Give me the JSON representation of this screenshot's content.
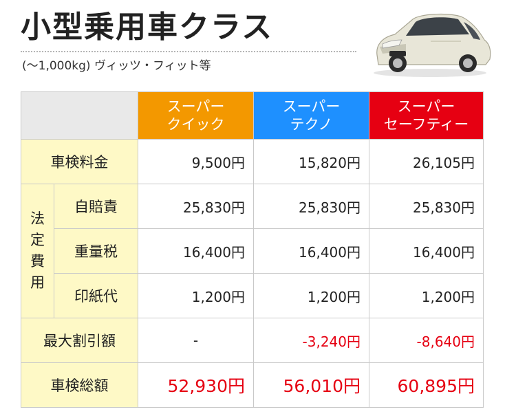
{
  "header": {
    "title": "小型乗用車クラス",
    "subtitle": "(～1,000kg) ヴィッツ・フィット等"
  },
  "plans": [
    {
      "line1": "スーパー",
      "line2": "クイック",
      "color": "#f39800"
    },
    {
      "line1": "スーパー",
      "line2": "テクノ",
      "color": "#1e90ff"
    },
    {
      "line1": "スーパー",
      "line2": "セーフティー",
      "color": "#e60012"
    }
  ],
  "rows": {
    "inspection_fee": {
      "label": "車検料金",
      "values": [
        "9,500円",
        "15,820円",
        "26,105円"
      ]
    },
    "legal_fees_label": [
      "法",
      "定",
      "費",
      "用"
    ],
    "liability_insurance": {
      "label": "自賠責",
      "values": [
        "25,830円",
        "25,830円",
        "25,830円"
      ]
    },
    "weight_tax": {
      "label": "重量税",
      "values": [
        "16,400円",
        "16,400円",
        "16,400円"
      ]
    },
    "stamp_fee": {
      "label": "印紙代",
      "values": [
        "1,200円",
        "1,200円",
        "1,200円"
      ]
    },
    "max_discount": {
      "label": "最大割引額",
      "values": [
        "-",
        "-3,240円",
        "-8,640円"
      ]
    },
    "total": {
      "label": "車検総額",
      "values": [
        "52,930円",
        "56,010円",
        "60,895円"
      ]
    }
  },
  "colors": {
    "accent_red": "#e60012",
    "label_bg": "#fef9c6",
    "header_bg": "#e9e9e9"
  }
}
